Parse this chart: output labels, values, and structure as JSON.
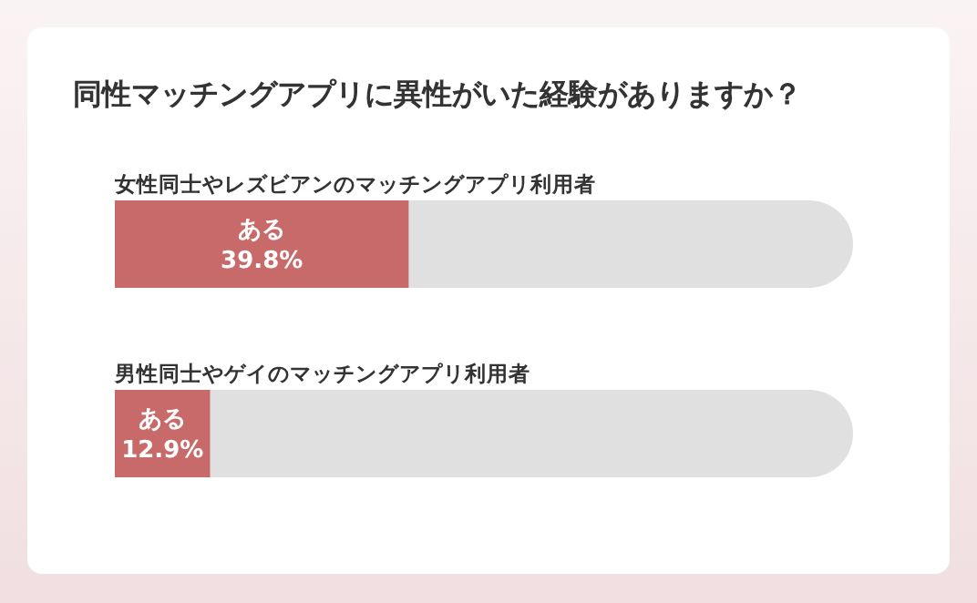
{
  "chart_data": {
    "type": "bar",
    "orientation": "horizontal",
    "title": "同性マッチングアプリに異性がいた経験がありますか？",
    "categories": [
      "女性同士やレズビアンのマッチングアプリ利用者",
      "男性同士やゲイのマッチングアプリ利用者"
    ],
    "values": [
      39.8,
      12.9
    ],
    "color": "#c96a6a",
    "xlim": [
      0,
      100
    ],
    "tick_labels": "y",
    "value_labels": [
      "ある\n39.8%",
      "ある\n12.9%"
    ]
  }
}
